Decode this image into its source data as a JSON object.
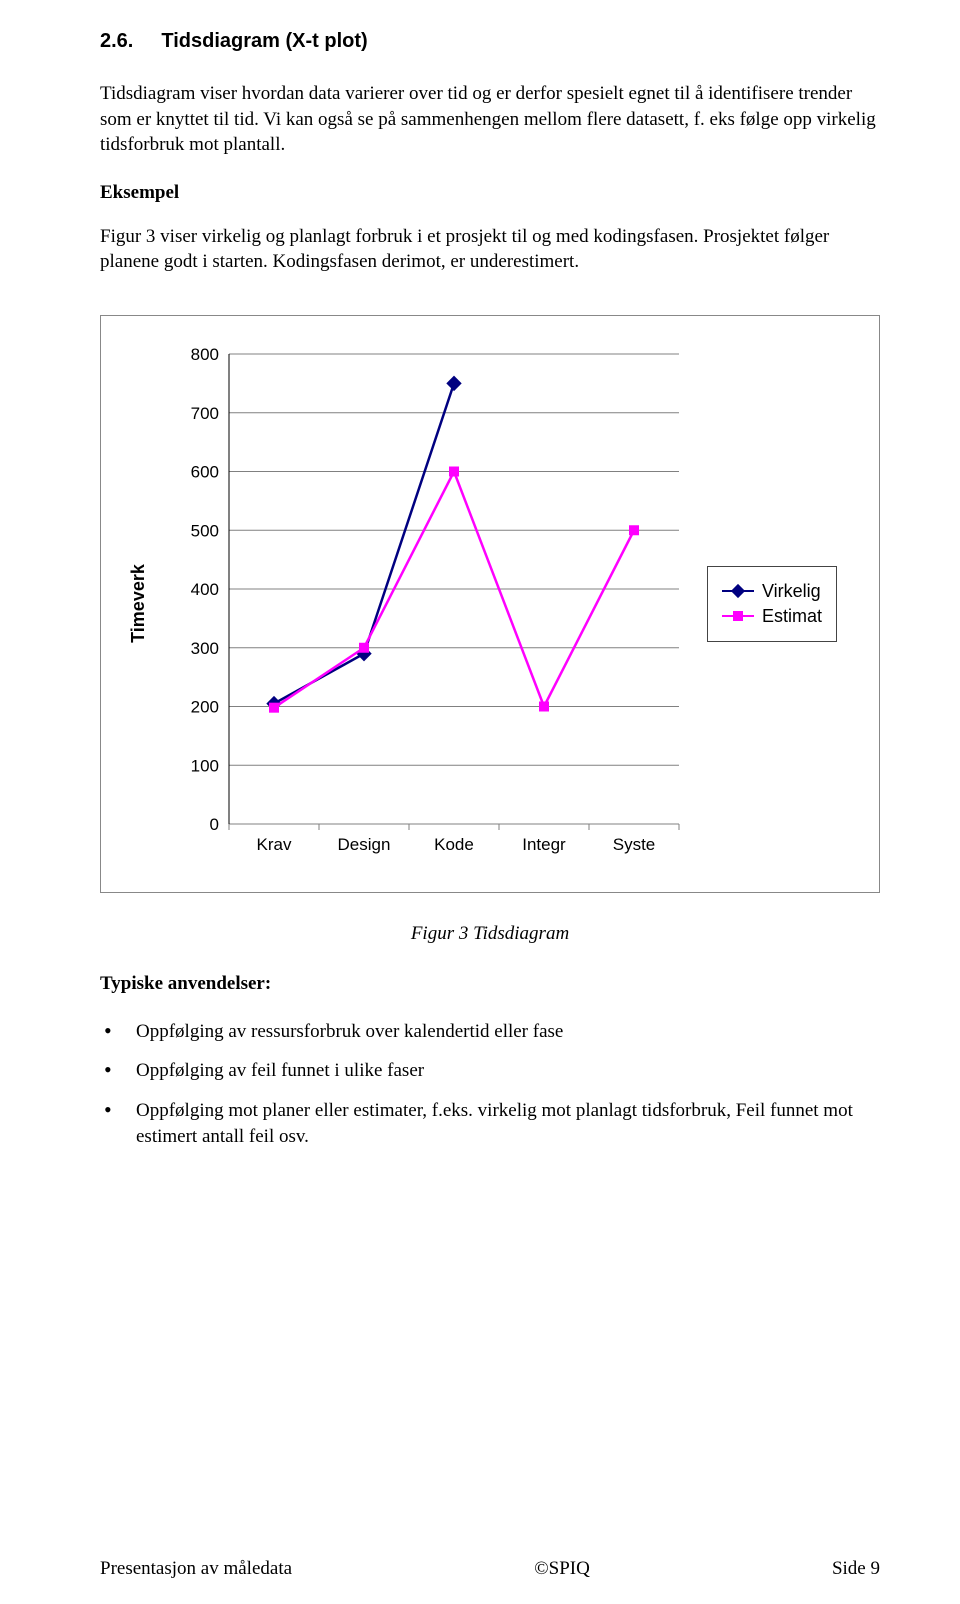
{
  "section": {
    "number": "2.6.",
    "title": "Tidsdiagram (X-t plot)"
  },
  "paragraphs": {
    "p1": "Tidsdiagram viser hvordan data varierer over tid og er derfor spesielt egnet til å identifisere trender som er knyttet til tid. Vi kan også se på sammenhengen mellom flere datasett, f. eks følge opp virkelig tidsforbruk mot plantall.",
    "eksempel_label": "Eksempel",
    "p2": "Figur 3 viser virkelig og planlagt forbruk i et prosjekt til og med kodingsfasen. Prosjektet følger planene godt i starten. Kodingsfasen derimot, er underestimert."
  },
  "chart": {
    "type": "line",
    "ylabel": "Timeverk",
    "categories": [
      "Krav",
      "Design",
      "Kode",
      "Integr",
      "Syste"
    ],
    "series": [
      {
        "name": "Virkelig",
        "color": "#000080",
        "marker": "diamond",
        "values": [
          205,
          290,
          750,
          null,
          null
        ]
      },
      {
        "name": "Estimat",
        "color": "#ff00ff",
        "marker": "square",
        "values": [
          198,
          300,
          600,
          200,
          500
        ]
      }
    ],
    "ylim": [
      0,
      800
    ],
    "ytick_step": 100,
    "background_color": "#ffffff",
    "grid_color": "#808080",
    "line_width": 2.5,
    "marker_size": 10,
    "label_fontsize": 17,
    "label_font": "Arial"
  },
  "caption": "Figur 3 Tidsdiagram",
  "typical_heading": "Typiske anvendelser:",
  "bullets": [
    "Oppfølging av ressursforbruk over kalendertid eller fase",
    "Oppfølging av feil funnet i ulike faser",
    "Oppfølging mot planer eller estimater, f.eks. virkelig mot planlagt tidsforbruk, Feil funnet mot estimert antall feil osv."
  ],
  "footer": {
    "left": "Presentasjon av måledata",
    "center": "©SPIQ",
    "right_label": "Side ",
    "page_number": "9"
  }
}
